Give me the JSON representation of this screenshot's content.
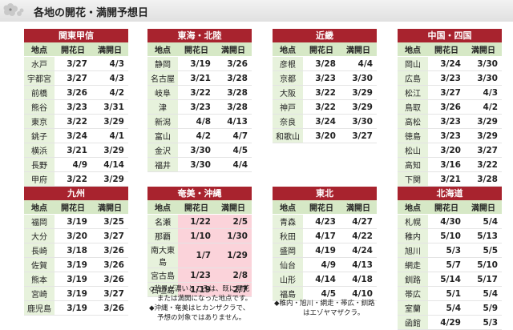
{
  "header": {
    "title": "各地の開花・満開予想日"
  },
  "columns": {
    "city": "地点",
    "bloom": "開花日",
    "full": "満開日"
  },
  "regions": [
    {
      "name": "関東甲信",
      "rows": [
        {
          "city": "水戸",
          "bloom": "3/27",
          "full": "4/3"
        },
        {
          "city": "宇都宮",
          "bloom": "3/27",
          "full": "4/3"
        },
        {
          "city": "前橋",
          "bloom": "3/26",
          "full": "4/2"
        },
        {
          "city": "熊谷",
          "bloom": "3/23",
          "full": "3/31"
        },
        {
          "city": "東京",
          "bloom": "3/22",
          "full": "3/29"
        },
        {
          "city": "銚子",
          "bloom": "3/24",
          "full": "4/1"
        },
        {
          "city": "横浜",
          "bloom": "3/21",
          "full": "3/29"
        },
        {
          "city": "長野",
          "bloom": "4/9",
          "full": "4/14"
        },
        {
          "city": "甲府",
          "bloom": "3/22",
          "full": "3/29"
        }
      ]
    },
    {
      "name": "東海・北陸",
      "rows": [
        {
          "city": "静岡",
          "bloom": "3/19",
          "full": "3/26"
        },
        {
          "city": "名古屋",
          "bloom": "3/21",
          "full": "3/28"
        },
        {
          "city": "岐阜",
          "bloom": "3/22",
          "full": "3/28"
        },
        {
          "city": "津",
          "bloom": "3/23",
          "full": "3/28"
        },
        {
          "city": "新潟",
          "bloom": "4/8",
          "full": "4/13"
        },
        {
          "city": "富山",
          "bloom": "4/2",
          "full": "4/7"
        },
        {
          "city": "金沢",
          "bloom": "3/30",
          "full": "4/5"
        },
        {
          "city": "福井",
          "bloom": "3/30",
          "full": "4/4"
        }
      ]
    },
    {
      "name": "近畿",
      "rows": [
        {
          "city": "彦根",
          "bloom": "3/28",
          "full": "4/4"
        },
        {
          "city": "京都",
          "bloom": "3/23",
          "full": "3/30"
        },
        {
          "city": "大阪",
          "bloom": "3/22",
          "full": "3/29"
        },
        {
          "city": "神戸",
          "bloom": "3/22",
          "full": "3/29"
        },
        {
          "city": "奈良",
          "bloom": "3/24",
          "full": "3/30"
        },
        {
          "city": "和歌山",
          "bloom": "3/20",
          "full": "3/27"
        }
      ]
    },
    {
      "name": "中国・四国",
      "rows": [
        {
          "city": "岡山",
          "bloom": "3/24",
          "full": "3/30"
        },
        {
          "city": "広島",
          "bloom": "3/23",
          "full": "3/30"
        },
        {
          "city": "松江",
          "bloom": "3/27",
          "full": "4/3"
        },
        {
          "city": "鳥取",
          "bloom": "3/26",
          "full": "4/2"
        },
        {
          "city": "高松",
          "bloom": "3/23",
          "full": "3/29"
        },
        {
          "city": "徳島",
          "bloom": "3/23",
          "full": "3/29"
        },
        {
          "city": "松山",
          "bloom": "3/20",
          "full": "3/27"
        },
        {
          "city": "高知",
          "bloom": "3/16",
          "full": "3/22"
        },
        {
          "city": "下関",
          "bloom": "3/21",
          "full": "3/28"
        }
      ]
    },
    {
      "name": "九州",
      "rows": [
        {
          "city": "福岡",
          "bloom": "3/19",
          "full": "3/25"
        },
        {
          "city": "大分",
          "bloom": "3/20",
          "full": "3/27"
        },
        {
          "city": "長崎",
          "bloom": "3/18",
          "full": "3/26"
        },
        {
          "city": "佐賀",
          "bloom": "3/19",
          "full": "3/26"
        },
        {
          "city": "熊本",
          "bloom": "3/19",
          "full": "3/26"
        },
        {
          "city": "宮崎",
          "bloom": "3/19",
          "full": "3/27"
        },
        {
          "city": "鹿児島",
          "bloom": "3/19",
          "full": "3/26"
        }
      ]
    },
    {
      "name": "奄美・沖縄",
      "rows": [
        {
          "city": "名瀬",
          "bloom": "1/22",
          "full": "2/5",
          "highlight": true
        },
        {
          "city": "那覇",
          "bloom": "1/10",
          "full": "1/30",
          "highlight": true
        },
        {
          "city": "南大東島",
          "bloom": "1/7",
          "full": "1/29",
          "highlight": true
        },
        {
          "city": "宮古島",
          "bloom": "1/23",
          "full": "2/8",
          "highlight": true
        },
        {
          "city": "石垣島",
          "bloom": "1/19",
          "full": "2/7",
          "highlight": true
        }
      ]
    },
    {
      "name": "東北",
      "rows": [
        {
          "city": "青森",
          "bloom": "4/23",
          "full": "4/27"
        },
        {
          "city": "秋田",
          "bloom": "4/17",
          "full": "4/22"
        },
        {
          "city": "盛岡",
          "bloom": "4/19",
          "full": "4/24"
        },
        {
          "city": "仙台",
          "bloom": "4/9",
          "full": "4/13"
        },
        {
          "city": "山形",
          "bloom": "4/14",
          "full": "4/18"
        },
        {
          "city": "福島",
          "bloom": "4/5",
          "full": "4/10"
        }
      ]
    },
    {
      "name": "北海道",
      "rows": [
        {
          "city": "札幌",
          "bloom": "4/30",
          "full": "5/4"
        },
        {
          "city": "稚内",
          "bloom": "5/10",
          "full": "5/13"
        },
        {
          "city": "旭川",
          "bloom": "5/3",
          "full": "5/5"
        },
        {
          "city": "網走",
          "bloom": "5/7",
          "full": "5/10"
        },
        {
          "city": "釧路",
          "bloom": "5/14",
          "full": "5/17"
        },
        {
          "city": "帯広",
          "bloom": "5/1",
          "full": "5/4"
        },
        {
          "city": "室蘭",
          "bloom": "5/4",
          "full": "5/9"
        },
        {
          "city": "函館",
          "bloom": "4/29",
          "full": "5/3"
        }
      ]
    }
  ],
  "notes": {
    "okinawa": [
      "◇背景が濃いところは、既に開花",
      "または満開になった地点です。",
      "◆沖縄・奄美はヒカンザクラで、",
      "予想の対象ではありません。"
    ],
    "tohoku": [
      "◆稚内・旭川・網走・帯広・釧路",
      "はエゾヤマザクラ。"
    ]
  },
  "colors": {
    "region_header": "#a8232e",
    "column_header": "#d6e8c6",
    "city_cell": "#e7f2dc",
    "highlight": "#fbd3da"
  },
  "icons": {
    "header": "cherry-blossom-icon"
  }
}
